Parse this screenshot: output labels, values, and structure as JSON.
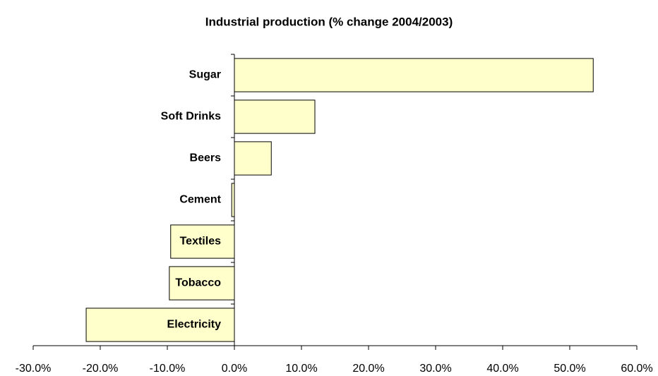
{
  "chart_data": {
    "type": "barh",
    "title": "Industrial production (% change 2004/2003)",
    "categories": [
      "Sugar",
      "Soft Drinks",
      "Beers",
      "Cement",
      "Textiles",
      "Tobacco",
      "Electricity"
    ],
    "values": [
      53.5,
      12.0,
      5.5,
      -0.4,
      -9.5,
      -9.7,
      -22.1
    ],
    "color": "#ffffcc",
    "xlim": [
      -30,
      60
    ],
    "xticks": [
      {
        "value": -30,
        "label": "-30.0%"
      },
      {
        "value": -20,
        "label": "-20.0%"
      },
      {
        "value": -10,
        "label": "-10.0%"
      },
      {
        "value": 0,
        "label": "0.0%"
      },
      {
        "value": 10,
        "label": "10.0%"
      },
      {
        "value": 20,
        "label": "20.0%"
      },
      {
        "value": 30,
        "label": "30.0%"
      },
      {
        "value": 40,
        "label": "40.0%"
      },
      {
        "value": 50,
        "label": "50.0%"
      },
      {
        "value": 60,
        "label": "60.0%"
      }
    ]
  }
}
